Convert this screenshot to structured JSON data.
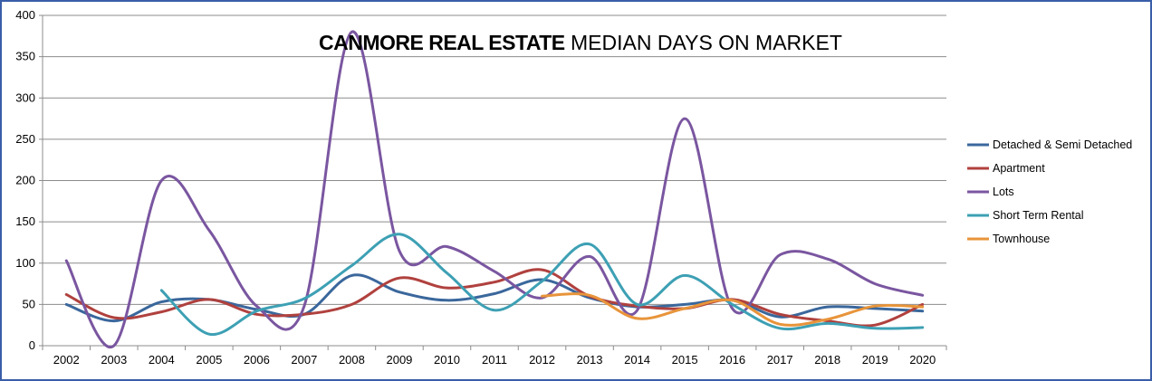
{
  "chart_data": {
    "type": "line",
    "title_bold": "CANMORE REAL ESTATE",
    "title_rest": " MEDIAN DAYS ON MARKET",
    "xlabel": "",
    "ylabel": "",
    "ylim": [
      0,
      400
    ],
    "yticks": [
      "0",
      "50",
      "100",
      "150",
      "200",
      "250",
      "300",
      "350",
      "400"
    ],
    "categories": [
      "2002",
      "2003",
      "2004",
      "2005",
      "2006",
      "2007",
      "2008",
      "2009",
      "2010",
      "2011",
      "2012",
      "2013",
      "2014",
      "2015",
      "2016",
      "2017",
      "2018",
      "2019",
      "2020"
    ],
    "grid": true,
    "legend_position": "right",
    "series": [
      {
        "name": "Detached & Semi Detached",
        "color": "#3a679c",
        "values": [
          50,
          30,
          53,
          56,
          44,
          38,
          85,
          65,
          55,
          63,
          80,
          58,
          47,
          50,
          55,
          35,
          47,
          45,
          42
        ]
      },
      {
        "name": "Apartment",
        "color": "#b0413e",
        "values": [
          62,
          34,
          41,
          56,
          38,
          38,
          50,
          82,
          70,
          77,
          92,
          60,
          48,
          45,
          56,
          38,
          30,
          25,
          50
        ]
      },
      {
        "name": "Lots",
        "color": "#7a56a0",
        "values": [
          103,
          0,
          200,
          140,
          48,
          48,
          380,
          115,
          120,
          90,
          58,
          108,
          43,
          275,
          45,
          110,
          105,
          75,
          61
        ]
      },
      {
        "name": "Short Term Rental",
        "color": "#3da0b4",
        "values": [
          null,
          null,
          67,
          14,
          42,
          57,
          97,
          135,
          88,
          43,
          78,
          123,
          50,
          85,
          50,
          21,
          27,
          21,
          22
        ]
      },
      {
        "name": "Townhouse",
        "color": "#e8943a",
        "values": [
          null,
          null,
          null,
          null,
          null,
          null,
          null,
          null,
          null,
          null,
          60,
          61,
          33,
          45,
          55,
          26,
          32,
          48,
          47
        ]
      }
    ]
  }
}
